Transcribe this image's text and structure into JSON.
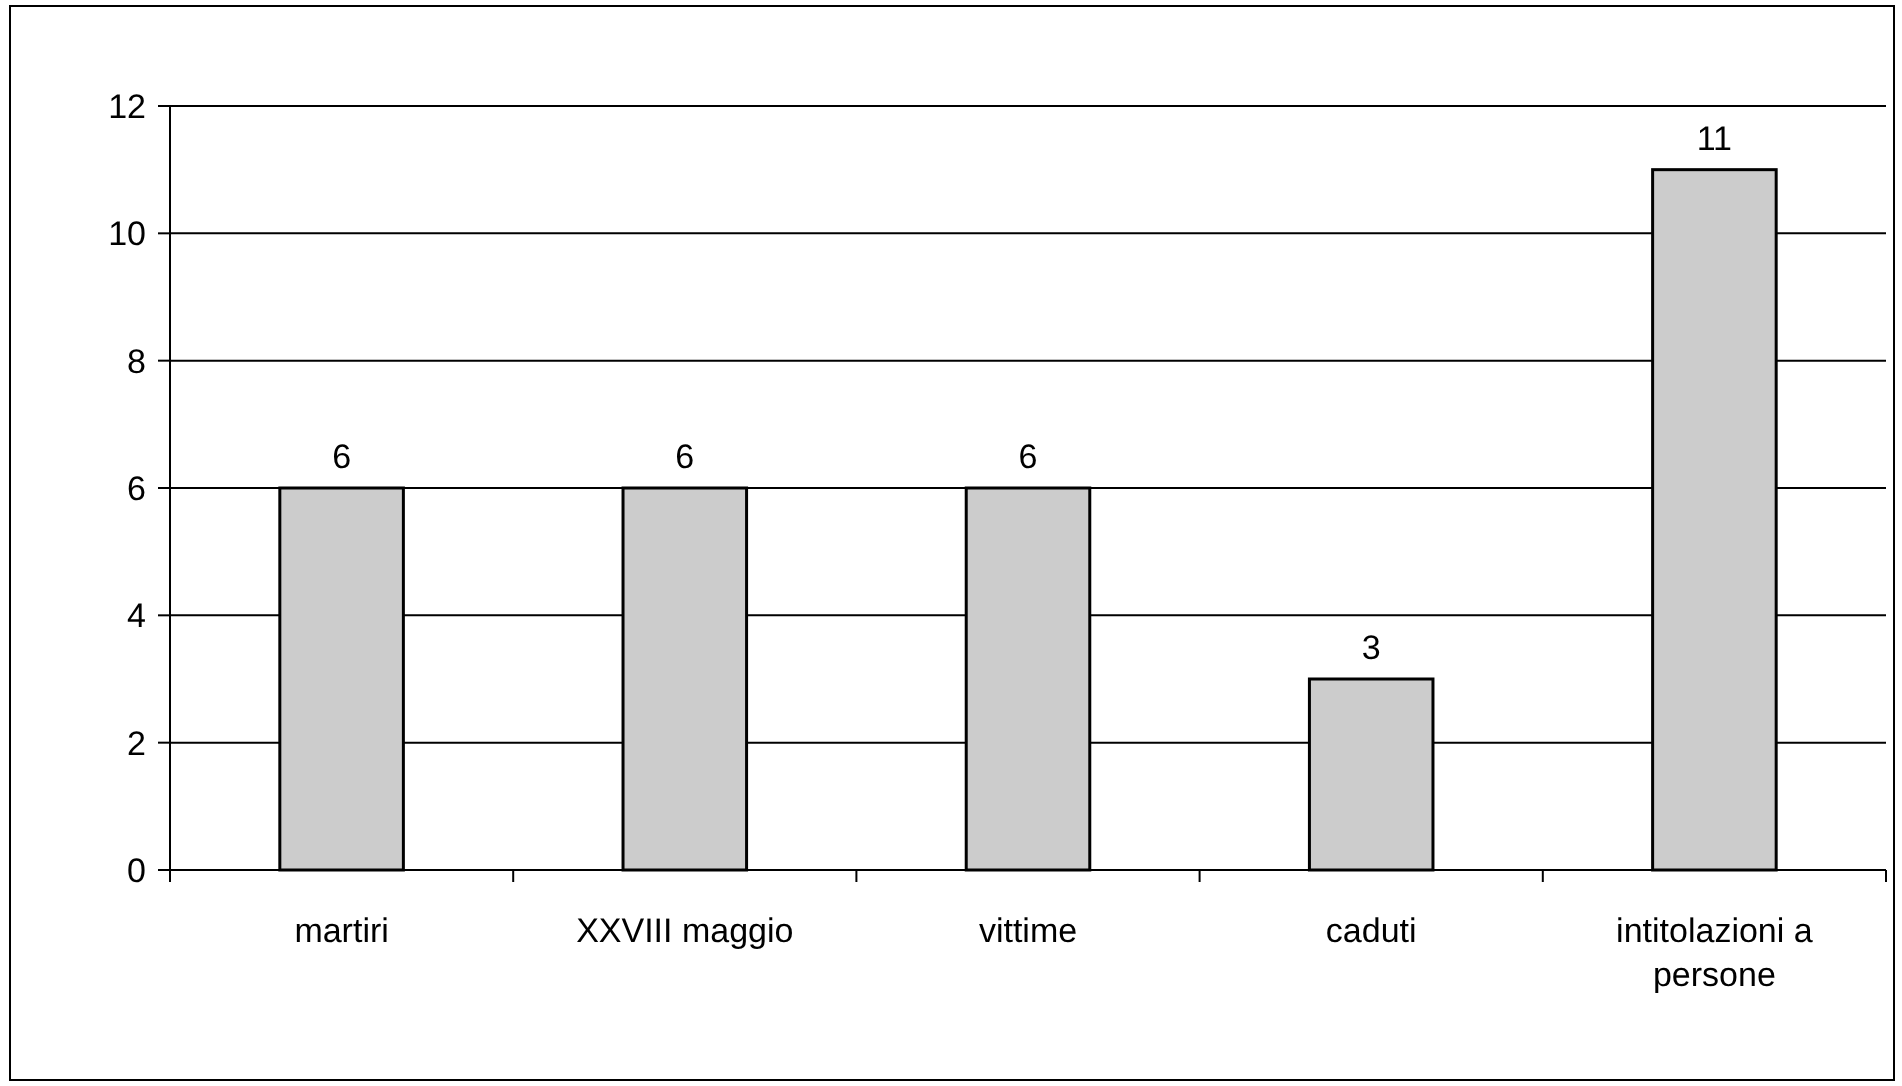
{
  "chart_data": {
    "type": "bar",
    "categories": [
      "martiri",
      "XXVIII maggio",
      "vittime",
      "caduti",
      "intitolazioni a persone"
    ],
    "values": [
      6,
      6,
      6,
      3,
      11
    ],
    "color": "#cccccc",
    "ylim": [
      0,
      12
    ],
    "yticks": [
      0,
      2,
      4,
      6,
      8,
      10,
      12
    ],
    "grid": "y",
    "data_labels": true
  }
}
